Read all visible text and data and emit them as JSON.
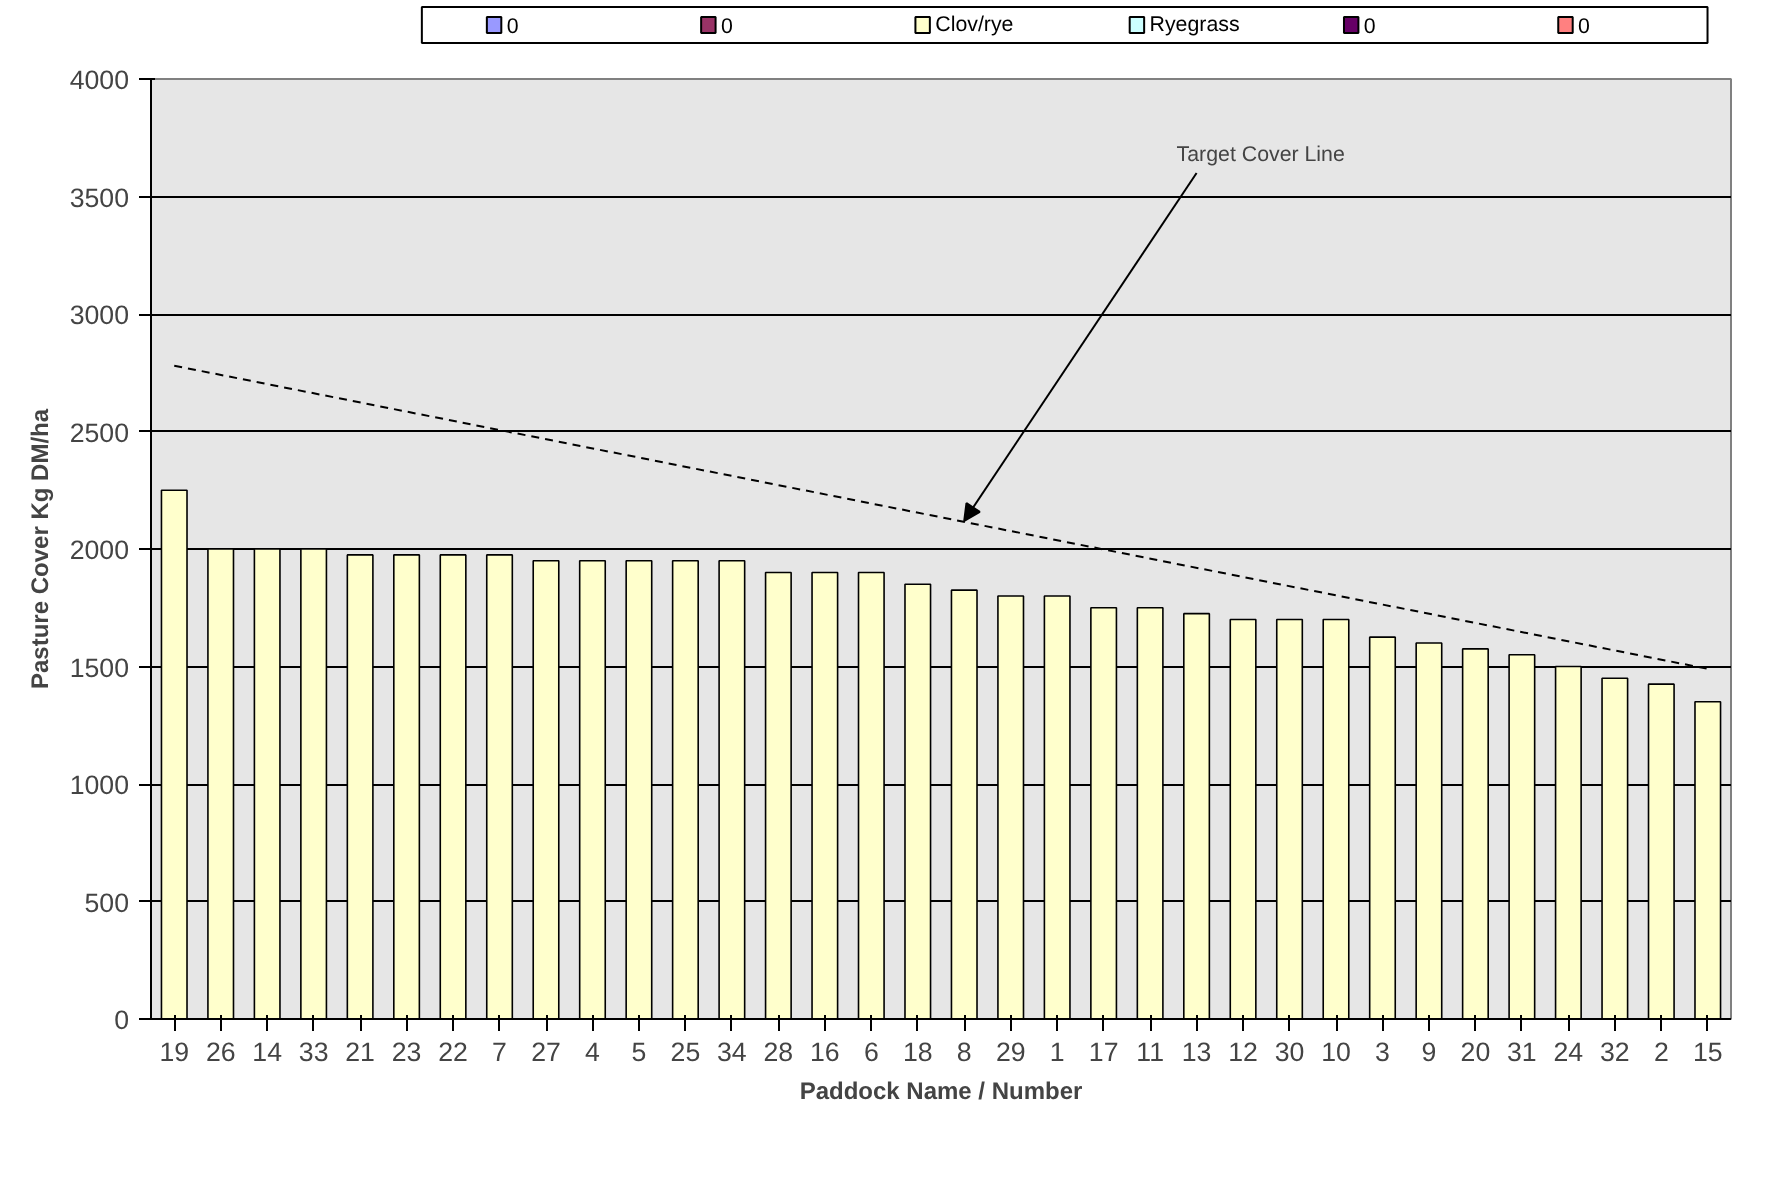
{
  "chart_data": {
    "type": "bar",
    "xlabel": "Paddock Name / Number",
    "ylabel": "Pasture Cover Kg DM/ha",
    "categories": [
      "19",
      "26",
      "14",
      "33",
      "21",
      "23",
      "22",
      "7",
      "27",
      "4",
      "5",
      "25",
      "34",
      "28",
      "16",
      "6",
      "18",
      "8",
      "29",
      "1",
      "17",
      "11",
      "13",
      "12",
      "30",
      "10",
      "3",
      "9",
      "20",
      "31",
      "24",
      "32",
      "2",
      "15"
    ],
    "series": [
      {
        "name": "0",
        "color": "#9999ff",
        "values": [
          null,
          null,
          null,
          null,
          null,
          null,
          null,
          null,
          null,
          null,
          null,
          null,
          null,
          null,
          null,
          null,
          null,
          null,
          null,
          null,
          null,
          null,
          null,
          null,
          null,
          null,
          null,
          null,
          null,
          null,
          null,
          null,
          null,
          null
        ]
      },
      {
        "name": "0",
        "color": "#993366",
        "values": [
          null,
          null,
          null,
          null,
          null,
          null,
          null,
          null,
          null,
          null,
          null,
          null,
          null,
          null,
          null,
          null,
          null,
          null,
          null,
          null,
          null,
          null,
          null,
          null,
          null,
          null,
          null,
          null,
          null,
          null,
          null,
          null,
          null,
          null
        ]
      },
      {
        "name": "Clov/rye",
        "color": "#ffffcc",
        "values": [
          2250,
          2000,
          2000,
          2000,
          1975,
          1975,
          1975,
          1975,
          1950,
          1950,
          1950,
          1950,
          1950,
          1900,
          1900,
          1900,
          1850,
          1825,
          1800,
          1800,
          1750,
          1750,
          1725,
          1700,
          1700,
          1700,
          1625,
          1600,
          1575,
          1550,
          1500,
          1450,
          1425,
          1350
        ]
      },
      {
        "name": "Ryegrass",
        "color": "#ccffff",
        "values": [
          null,
          null,
          null,
          null,
          null,
          null,
          null,
          null,
          null,
          null,
          null,
          null,
          null,
          null,
          null,
          null,
          null,
          null,
          null,
          null,
          null,
          null,
          null,
          null,
          null,
          null,
          null,
          null,
          null,
          null,
          null,
          null,
          null,
          null
        ]
      },
      {
        "name": "0",
        "color": "#660066",
        "values": [
          null,
          null,
          null,
          null,
          null,
          null,
          null,
          null,
          null,
          null,
          null,
          null,
          null,
          null,
          null,
          null,
          null,
          null,
          null,
          null,
          null,
          null,
          null,
          null,
          null,
          null,
          null,
          null,
          null,
          null,
          null,
          null,
          null,
          null
        ]
      },
      {
        "name": "0",
        "color": "#ff8080",
        "values": [
          null,
          null,
          null,
          null,
          null,
          null,
          null,
          null,
          null,
          null,
          null,
          null,
          null,
          null,
          null,
          null,
          null,
          null,
          null,
          null,
          null,
          null,
          null,
          null,
          null,
          null,
          null,
          null,
          null,
          null,
          null,
          null,
          null,
          null
        ]
      },
      {
        "type": "line",
        "color": "#000000",
        "line_style": "dashed",
        "x": [
          "19",
          "15"
        ],
        "values": [
          2780,
          1490
        ]
      }
    ],
    "annotations": [
      {
        "text": "Target Cover Line",
        "x": "8",
        "y": 2120
      }
    ],
    "ylim": [
      0,
      4000
    ],
    "yticks": [
      0,
      500,
      1000,
      1500,
      2000,
      2500,
      3000,
      3500,
      4000
    ],
    "grid": "y",
    "legend": "top"
  }
}
